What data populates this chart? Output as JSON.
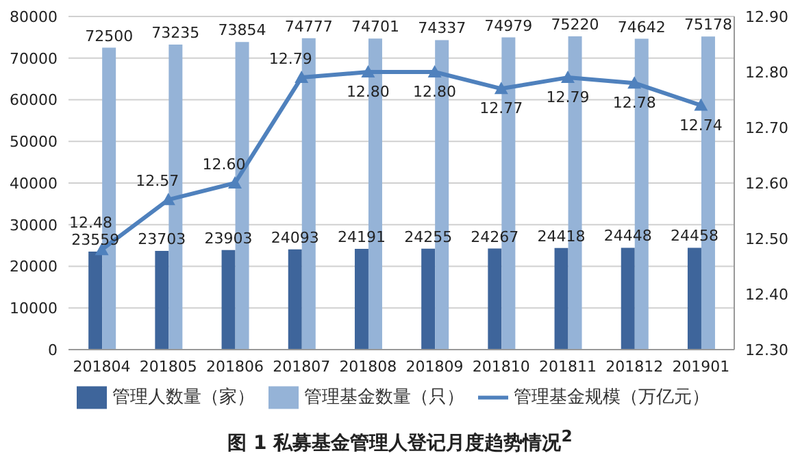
{
  "chart_data": {
    "type": "bar",
    "title": "图 1  私募基金管理人登记月度趋势情况$^{2}$",
    "categories": [
      "201804",
      "201805",
      "201806",
      "201807",
      "201808",
      "201809",
      "201810",
      "201811",
      "201812",
      "201901"
    ],
    "series": [
      {
        "name": "管理人数量（家）",
        "color": "#3e659b",
        "values": [
          23559,
          23703,
          23903,
          24093,
          24191,
          24255,
          24267,
          24418,
          24448,
          24458
        ]
      },
      {
        "name": "管理基金数量（只）",
        "color": "#95b3d7",
        "values": [
          72500,
          73235,
          73854,
          74777,
          74701,
          74337,
          74979,
          75220,
          74642,
          75178
        ]
      },
      {
        "name": "管理基金规模（万亿元）",
        "type": "line",
        "axis": "y2",
        "color": "#4f81bd",
        "marker": "triangle",
        "values": [
          12.48,
          12.57,
          12.6,
          12.79,
          12.8,
          12.8,
          12.77,
          12.79,
          12.78,
          12.74
        ],
        "value_labels": [
          "12.48",
          "12.57",
          "12.60",
          "12.79",
          "12.80",
          "12.80",
          "12.77",
          "12.79",
          "12.78",
          "12.74"
        ]
      }
    ],
    "ylim": [
      0,
      80000
    ],
    "yticks": [
      0,
      10000,
      20000,
      30000,
      40000,
      50000,
      60000,
      70000,
      80000
    ],
    "y2lim": [
      12.3,
      12.9
    ],
    "y2ticks": [
      {
        "value": 12.3,
        "label": "12.30"
      },
      {
        "value": 12.4,
        "label": "12.40"
      },
      {
        "value": 12.5,
        "label": "12.50"
      },
      {
        "value": 12.6,
        "label": "12.60"
      },
      {
        "value": 12.7,
        "label": "12.70"
      },
      {
        "value": 12.8,
        "label": "12.80"
      },
      {
        "value": 12.9,
        "label": "12.90"
      }
    ],
    "grid": "y",
    "legend": "bottom",
    "data_labels": true
  }
}
